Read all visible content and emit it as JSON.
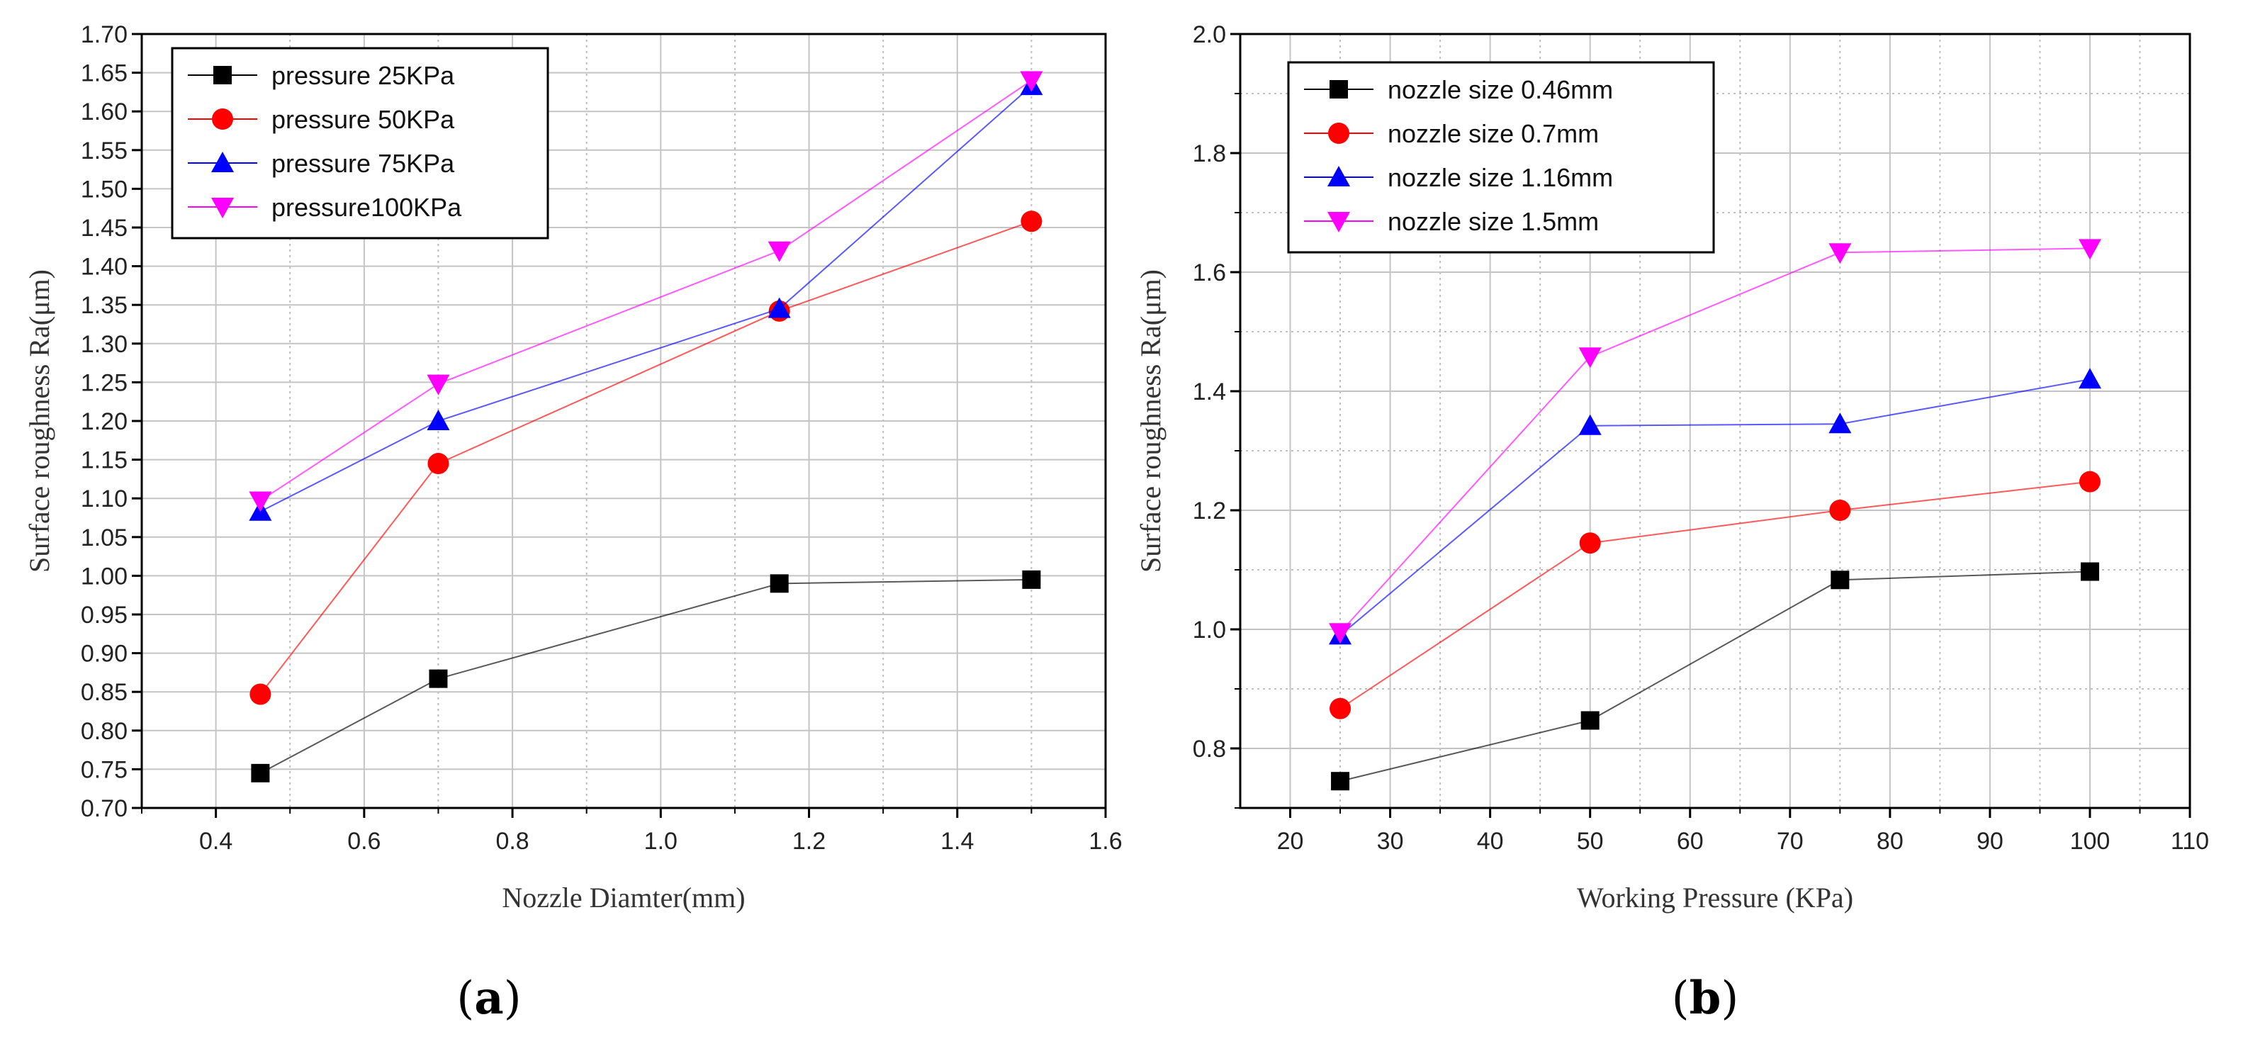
{
  "chart_data": [
    {
      "type": "line",
      "panel_label": "a",
      "xlabel": "Nozzle Diamter(mm)",
      "ylabel": "Surface roughness Ra(μm)",
      "xlim": [
        0.3,
        1.6
      ],
      "ylim": [
        0.7,
        1.7
      ],
      "xticks": [
        0.4,
        0.6,
        0.8,
        1.0,
        1.2,
        1.4,
        1.6
      ],
      "xtick_labels": [
        "0.4",
        "0.6",
        "0.8",
        "1.0",
        "1.2",
        "1.4",
        "1.6"
      ],
      "yticks": [
        0.7,
        0.75,
        0.8,
        0.85,
        0.9,
        0.95,
        1.0,
        1.05,
        1.1,
        1.15,
        1.2,
        1.25,
        1.3,
        1.35,
        1.4,
        1.45,
        1.5,
        1.55,
        1.6,
        1.65,
        1.7
      ],
      "ytick_labels": [
        "0.70",
        "0.75",
        "0.80",
        "0.85",
        "0.90",
        "0.95",
        "1.00",
        "1.05",
        "1.10",
        "1.15",
        "1.20",
        "1.25",
        "1.30",
        "1.35",
        "1.40",
        "1.45",
        "1.50",
        "1.55",
        "1.60",
        "1.65",
        "1.70"
      ],
      "grid": true,
      "legend_position": "top-left",
      "x": [
        0.46,
        0.7,
        1.16,
        1.5
      ],
      "series": [
        {
          "name": "pressure 25KPa",
          "color": "#000000",
          "marker": "square",
          "values": [
            0.745,
            0.867,
            0.99,
            0.995
          ]
        },
        {
          "name": "pressure 50KPa",
          "color": "#ff0000",
          "marker": "circle",
          "values": [
            0.847,
            1.145,
            1.342,
            1.458
          ]
        },
        {
          "name": "pressure 75KPa",
          "color": "#0000ff",
          "marker": "triangle-up",
          "values": [
            1.083,
            1.2,
            1.345,
            1.633
          ]
        },
        {
          "name": "pressure100KPa",
          "color": "#ff00ff",
          "marker": "triangle-down",
          "values": [
            1.097,
            1.248,
            1.42,
            1.64
          ]
        }
      ]
    },
    {
      "type": "line",
      "panel_label": "b",
      "xlabel": "Working Pressure (KPa)",
      "ylabel": "Surface roughness Ra(μm)",
      "xlim": [
        15,
        110
      ],
      "ylim": [
        0.7,
        2.0
      ],
      "xticks": [
        20,
        30,
        40,
        50,
        60,
        70,
        80,
        90,
        100,
        110
      ],
      "xtick_labels": [
        "20",
        "30",
        "40",
        "50",
        "60",
        "70",
        "80",
        "90",
        "100",
        "110"
      ],
      "yticks": [
        0.8,
        1.0,
        1.2,
        1.4,
        1.6,
        1.8,
        2.0
      ],
      "ytick_labels": [
        "0.8",
        "1.0",
        "1.2",
        "1.4",
        "1.6",
        "1.8",
        "2.0"
      ],
      "grid": true,
      "legend_position": "top-left",
      "x": [
        25,
        50,
        75,
        100
      ],
      "series": [
        {
          "name": "nozzle size 0.46mm",
          "color": "#000000",
          "marker": "square",
          "values": [
            0.745,
            0.847,
            1.083,
            1.097
          ]
        },
        {
          "name": "nozzle size 0.7mm",
          "color": "#ff0000",
          "marker": "circle",
          "values": [
            0.867,
            1.145,
            1.2,
            1.248
          ]
        },
        {
          "name": "nozzle size 1.16mm",
          "color": "#0000ff",
          "marker": "triangle-up",
          "values": [
            0.99,
            1.342,
            1.345,
            1.42
          ]
        },
        {
          "name": "nozzle size 1.5mm",
          "color": "#ff00ff",
          "marker": "triangle-down",
          "values": [
            0.995,
            1.458,
            1.633,
            1.64
          ]
        }
      ]
    }
  ]
}
